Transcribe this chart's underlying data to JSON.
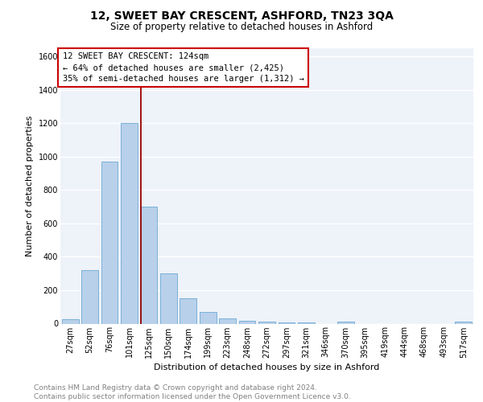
{
  "title1": "12, SWEET BAY CRESCENT, ASHFORD, TN23 3QA",
  "title2": "Size of property relative to detached houses in Ashford",
  "xlabel": "Distribution of detached houses by size in Ashford",
  "ylabel": "Number of detached properties",
  "categories": [
    "27sqm",
    "52sqm",
    "76sqm",
    "101sqm",
    "125sqm",
    "150sqm",
    "174sqm",
    "199sqm",
    "223sqm",
    "248sqm",
    "272sqm",
    "297sqm",
    "321sqm",
    "346sqm",
    "370sqm",
    "395sqm",
    "419sqm",
    "444sqm",
    "468sqm",
    "493sqm",
    "517sqm"
  ],
  "values": [
    25,
    320,
    970,
    1200,
    700,
    300,
    150,
    70,
    30,
    15,
    10,
    5,
    5,
    0,
    10,
    0,
    0,
    0,
    0,
    0,
    10
  ],
  "bar_color": "#b8d0ea",
  "bar_edge_color": "#6aaad4",
  "vline_color": "#990000",
  "annotation_text": "12 SWEET BAY CRESCENT: 124sqm\n← 64% of detached houses are smaller (2,425)\n35% of semi-detached houses are larger (1,312) →",
  "annotation_box_color": "white",
  "annotation_box_edge_color": "#cc0000",
  "ylim": [
    0,
    1650
  ],
  "yticks": [
    0,
    200,
    400,
    600,
    800,
    1000,
    1200,
    1400,
    1600
  ],
  "bg_color": "#eef2f9",
  "grid_color": "white",
  "footer_text": "Contains HM Land Registry data © Crown copyright and database right 2024.\nContains public sector information licensed under the Open Government Licence v3.0.",
  "title1_fontsize": 10,
  "title2_fontsize": 8.5,
  "xlabel_fontsize": 8,
  "ylabel_fontsize": 8,
  "tick_fontsize": 7,
  "annotation_fontsize": 7.5,
  "footer_fontsize": 6.5
}
